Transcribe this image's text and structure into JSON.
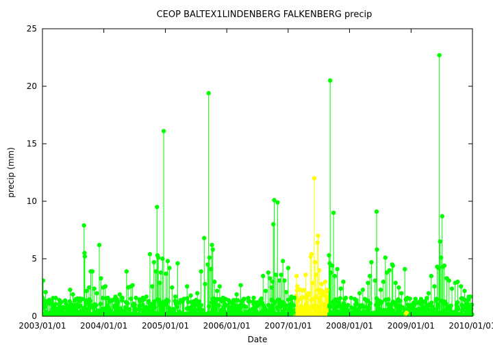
{
  "chart_data": {
    "type": "scatter",
    "title": "CEOP BALTEX1LINDENBERG FALKENBERG  precip",
    "xlabel": "Date",
    "ylabel": "precip (mm)",
    "ylim": [
      0,
      25
    ],
    "xlim": [
      "2003-01-01",
      "2010-01-01"
    ],
    "x_ticks": [
      "2003/01/01",
      "2004/01/01",
      "2005/01/01",
      "2006/01/01",
      "2007/01/01",
      "2008/01/01",
      "2009/01/01",
      "2010/01/01"
    ],
    "y_ticks": [
      0,
      5,
      10,
      15,
      20,
      25
    ],
    "grid": false,
    "legend": "none",
    "colors": {
      "normal": "#00ff00",
      "flagged": "#ffff00",
      "axis": "#000000",
      "background": "#ffffff"
    },
    "series": [
      {
        "color": "#00ff00",
        "points": [
          [
            "2003-01-05",
            3.1
          ],
          [
            "2003-01-20",
            2.1
          ],
          [
            "2003-02-10",
            1.4
          ],
          [
            "2003-03-05",
            0.9
          ],
          [
            "2003-04-12",
            1.4
          ],
          [
            "2003-05-20",
            1.1
          ],
          [
            "2003-06-15",
            2.3
          ],
          [
            "2003-07-01",
            1.9
          ],
          [
            "2003-07-20",
            1.5
          ],
          [
            "2003-08-10",
            1.3
          ],
          [
            "2003-08-25",
            1.5
          ],
          [
            "2003-09-05",
            7.9
          ],
          [
            "2003-09-08",
            5.5
          ],
          [
            "2003-09-10",
            5.2
          ],
          [
            "2003-09-20",
            2.2
          ],
          [
            "2003-10-05",
            2.5
          ],
          [
            "2003-10-15",
            3.9
          ],
          [
            "2003-10-25",
            3.9
          ],
          [
            "2003-11-05",
            2.4
          ],
          [
            "2003-11-20",
            2.0
          ],
          [
            "2003-12-05",
            6.2
          ],
          [
            "2003-12-15",
            3.3
          ],
          [
            "2003-12-28",
            2.5
          ],
          [
            "2004-01-10",
            2.6
          ],
          [
            "2004-01-25",
            1.6
          ],
          [
            "2004-02-15",
            1.4
          ],
          [
            "2004-03-10",
            1.7
          ],
          [
            "2004-04-05",
            1.9
          ],
          [
            "2004-04-20",
            1.6
          ],
          [
            "2004-05-15",
            3.9
          ],
          [
            "2004-05-25",
            2.5
          ],
          [
            "2004-06-10",
            2.6
          ],
          [
            "2004-06-20",
            2.7
          ],
          [
            "2004-07-10",
            1.6
          ],
          [
            "2004-08-01",
            1.4
          ],
          [
            "2004-08-20",
            1.6
          ],
          [
            "2004-09-10",
            1.7
          ],
          [
            "2004-10-01",
            5.4
          ],
          [
            "2004-10-15",
            2.6
          ],
          [
            "2004-10-25",
            4.7
          ],
          [
            "2004-11-05",
            3.9
          ],
          [
            "2004-11-12",
            9.5
          ],
          [
            "2004-11-15",
            5.3
          ],
          [
            "2004-11-20",
            5.1
          ],
          [
            "2004-11-28",
            2.9
          ],
          [
            "2004-12-05",
            3.8
          ],
          [
            "2004-12-15",
            5.0
          ],
          [
            "2004-12-22",
            16.1
          ],
          [
            "2005-01-05",
            3.7
          ],
          [
            "2005-01-15",
            4.8
          ],
          [
            "2005-01-25",
            4.2
          ],
          [
            "2005-02-10",
            2.5
          ],
          [
            "2005-03-01",
            1.7
          ],
          [
            "2005-03-15",
            4.6
          ],
          [
            "2005-04-01",
            1.4
          ],
          [
            "2005-04-20",
            1.5
          ],
          [
            "2005-05-10",
            2.6
          ],
          [
            "2005-06-01",
            1.8
          ],
          [
            "2005-06-20",
            1.3
          ],
          [
            "2005-07-10",
            2.0
          ],
          [
            "2005-08-01",
            3.9
          ],
          [
            "2005-08-20",
            6.8
          ],
          [
            "2005-08-25",
            2.8
          ],
          [
            "2005-09-10",
            4.5
          ],
          [
            "2005-09-15",
            19.4
          ],
          [
            "2005-09-20",
            5.1
          ],
          [
            "2005-09-28",
            4.1
          ],
          [
            "2005-10-05",
            6.2
          ],
          [
            "2005-10-10",
            5.8
          ],
          [
            "2005-10-20",
            3.0
          ],
          [
            "2005-11-05",
            2.2
          ],
          [
            "2005-11-20",
            2.6
          ],
          [
            "2005-12-10",
            1.6
          ],
          [
            "2005-12-25",
            1.5
          ],
          [
            "2006-01-15",
            1.3
          ],
          [
            "2006-02-10",
            1.4
          ],
          [
            "2006-03-01",
            1.9
          ],
          [
            "2006-03-25",
            2.7
          ],
          [
            "2006-04-15",
            1.5
          ],
          [
            "2006-05-10",
            1.3
          ],
          [
            "2006-06-10",
            1.6
          ],
          [
            "2006-07-01",
            1.2
          ],
          [
            "2006-07-20",
            1.4
          ],
          [
            "2006-08-05",
            3.5
          ],
          [
            "2006-08-20",
            2.2
          ],
          [
            "2006-09-05",
            3.8
          ],
          [
            "2006-09-15",
            3.3
          ],
          [
            "2006-09-25",
            2.5
          ],
          [
            "2006-10-01",
            3.0
          ],
          [
            "2006-10-05",
            8.0
          ],
          [
            "2006-10-10",
            10.1
          ],
          [
            "2006-10-20",
            3.6
          ],
          [
            "2006-10-30",
            9.9
          ],
          [
            "2006-11-10",
            3.1
          ],
          [
            "2006-11-20",
            3.6
          ],
          [
            "2006-12-01",
            4.8
          ],
          [
            "2006-12-10",
            3.1
          ],
          [
            "2006-12-20",
            2.1
          ],
          [
            "2007-01-01",
            4.2
          ],
          [
            "2007-01-20",
            1.7
          ],
          [
            "2007-02-10",
            1.6
          ],
          [
            "2007-09-01",
            5.3
          ],
          [
            "2007-09-05",
            4.6
          ],
          [
            "2007-09-08",
            20.5
          ],
          [
            "2007-09-12",
            3.8
          ],
          [
            "2007-09-20",
            4.4
          ],
          [
            "2007-09-28",
            9.0
          ],
          [
            "2007-10-05",
            3.5
          ],
          [
            "2007-10-20",
            4.1
          ],
          [
            "2007-11-10",
            2.4
          ],
          [
            "2007-11-25",
            3.0
          ],
          [
            "2007-12-10",
            1.6
          ],
          [
            "2008-01-10",
            1.6
          ],
          [
            "2008-02-01",
            1.5
          ],
          [
            "2008-03-01",
            2.0
          ],
          [
            "2008-03-20",
            2.3
          ],
          [
            "2008-04-20",
            2.9
          ],
          [
            "2008-05-01",
            3.5
          ],
          [
            "2008-05-10",
            4.7
          ],
          [
            "2008-06-01",
            3.1
          ],
          [
            "2008-06-10",
            9.1
          ],
          [
            "2008-06-12",
            5.8
          ],
          [
            "2008-06-20",
            1.4
          ],
          [
            "2008-07-05",
            2.3
          ],
          [
            "2008-07-20",
            3.0
          ],
          [
            "2008-08-01",
            5.1
          ],
          [
            "2008-08-10",
            3.8
          ],
          [
            "2008-08-25",
            4.0
          ],
          [
            "2008-09-10",
            4.5
          ],
          [
            "2008-09-15",
            4.4
          ],
          [
            "2008-10-01",
            2.9
          ],
          [
            "2008-10-20",
            2.5
          ],
          [
            "2008-11-05",
            2.0
          ],
          [
            "2008-11-25",
            4.1
          ],
          [
            "2008-12-10",
            1.6
          ],
          [
            "2009-01-10",
            0.8
          ],
          [
            "2009-02-10",
            1.2
          ],
          [
            "2009-03-05",
            1.0
          ],
          [
            "2009-03-25",
            1.3
          ],
          [
            "2009-04-15",
            2.0
          ],
          [
            "2009-05-01",
            3.5
          ],
          [
            "2009-05-20",
            2.6
          ],
          [
            "2009-06-05",
            4.3
          ],
          [
            "2009-06-15",
            4.2
          ],
          [
            "2009-06-18",
            22.7
          ],
          [
            "2009-06-22",
            6.5
          ],
          [
            "2009-06-28",
            5.1
          ],
          [
            "2009-07-05",
            8.7
          ],
          [
            "2009-07-10",
            4.3
          ],
          [
            "2009-07-18",
            4.4
          ],
          [
            "2009-08-01",
            3.3
          ],
          [
            "2009-08-15",
            3.1
          ],
          [
            "2009-09-01",
            2.4
          ],
          [
            "2009-09-20",
            2.9
          ],
          [
            "2009-10-05",
            3.0
          ],
          [
            "2009-10-25",
            2.6
          ],
          [
            "2009-11-15",
            2.2
          ],
          [
            "2009-12-10",
            1.7
          ],
          [
            "2009-12-20",
            1.7
          ],
          [
            "2009-12-28",
            1.0
          ]
        ]
      },
      {
        "color": "#ffff00",
        "points": [
          [
            "2007-02-20",
            3.5
          ],
          [
            "2007-02-25",
            2.6
          ],
          [
            "2007-03-10",
            1.5
          ],
          [
            "2007-04-15",
            3.6
          ],
          [
            "2007-05-01",
            2.0
          ],
          [
            "2007-05-15",
            5.2
          ],
          [
            "2007-05-20",
            5.4
          ],
          [
            "2007-05-25",
            2.9
          ],
          [
            "2007-06-05",
            12.0
          ],
          [
            "2007-06-10",
            4.7
          ],
          [
            "2007-06-15",
            3.6
          ],
          [
            "2007-06-25",
            6.4
          ],
          [
            "2007-06-28",
            7.0
          ],
          [
            "2007-07-05",
            4.0
          ],
          [
            "2007-07-20",
            2.8
          ],
          [
            "2007-08-10",
            3.0
          ],
          [
            "2007-08-20",
            2.3
          ],
          [
            "2008-12-05",
            0.3
          ]
        ]
      }
    ],
    "dense_segments": [
      {
        "color": "#00ff00",
        "from": "2003-01-01",
        "to": "2007-02-15",
        "ymax": 1.0
      },
      {
        "color": "#ffff00",
        "from": "2007-02-15",
        "to": "2007-08-31",
        "ymax": 1.5
      },
      {
        "color": "#00ff00",
        "from": "2007-08-31",
        "to": "2008-12-01",
        "ymax": 1.0
      },
      {
        "color": "#ffff00",
        "from": "2008-12-01",
        "to": "2008-12-10",
        "ymax": 0.4
      },
      {
        "color": "#00ff00",
        "from": "2008-12-10",
        "to": "2010-01-01",
        "ymax": 1.0
      }
    ]
  }
}
